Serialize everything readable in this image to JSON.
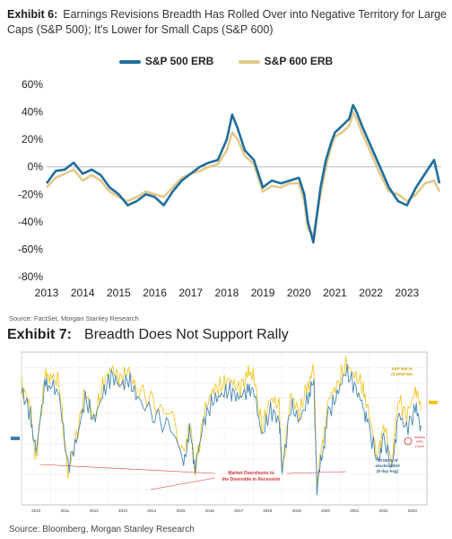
{
  "exhibit6": {
    "label": "Exhibit 6:",
    "title": "Earnings Revisions Breadth Has Rolled Over into Negative Territory for Large Caps (S&P 500); It's Lower for Small Caps (S&P 600)",
    "source": "Source: FactSet, Morgan Stanley Research"
  },
  "exhibit7": {
    "label": "Exhibit 7:",
    "title": "Breadth Does Not Support Rally",
    "source": "Source: Bloomberg, Morgan Stanley Research",
    "annotation_main": [
      "Market Overshoots to",
      "the Downside in Recession"
    ],
    "annotation_sp": [
      "S&P 500 %",
      "of 200d MA"
    ],
    "annotation_nyse": [
      "NYSE % of",
      "stocks>200d",
      "(5 day Avg)"
    ],
    "annotation_implies": [
      "Implies",
      "EPS",
      "Down"
    ],
    "years": [
      "2010",
      "2011",
      "2012",
      "2013",
      "2014",
      "2015",
      "2016",
      "2017",
      "2018",
      "2019",
      "2020",
      "2021",
      "2022",
      "2023"
    ]
  },
  "colors": {
    "sp500": "#1f6e9c",
    "sp600": "#e3c98a",
    "nyse": "#3d7fb0",
    "sp200": "#f0c419",
    "annotation": "#d63030"
  },
  "chart_data": [
    {
      "type": "line",
      "title": "Earnings Revisions Breadth Has Rolled Over into Negative Territory for Large Caps (S&P 500); It's Lower for Small Caps (S&P 600)",
      "xlabel": "",
      "ylabel": "",
      "xlim": [
        2013.0,
        2023.95
      ],
      "ylim": [
        -80,
        60
      ],
      "x_ticks": [
        "2013",
        "2014",
        "2015",
        "2016",
        "2017",
        "2018",
        "2019",
        "2020",
        "2021",
        "2022",
        "2023"
      ],
      "y_ticks": [
        "60%",
        "40%",
        "20%",
        "0%",
        "-20%",
        "-40%",
        "-60%",
        "-80%"
      ],
      "y_tick_values": [
        60,
        40,
        20,
        0,
        -20,
        -40,
        -60,
        -80
      ],
      "legend": "top",
      "grid": false,
      "series": [
        {
          "name": "S&P 500 ERB",
          "x": [
            2013.0,
            2013.25,
            2013.5,
            2013.75,
            2014.0,
            2014.25,
            2014.5,
            2014.75,
            2015.0,
            2015.25,
            2015.5,
            2015.75,
            2016.0,
            2016.25,
            2016.5,
            2016.75,
            2017.0,
            2017.25,
            2017.5,
            2017.75,
            2018.0,
            2018.15,
            2018.3,
            2018.5,
            2018.75,
            2019.0,
            2019.25,
            2019.5,
            2019.75,
            2020.0,
            2020.15,
            2020.25,
            2020.4,
            2020.6,
            2020.75,
            2020.9,
            2021.0,
            2021.2,
            2021.4,
            2021.5,
            2021.6,
            2021.75,
            2022.0,
            2022.25,
            2022.5,
            2022.75,
            2023.0,
            2023.25,
            2023.5,
            2023.75,
            2023.9
          ],
          "values": [
            -12,
            -3,
            -2,
            3,
            -5,
            -2,
            -6,
            -15,
            -20,
            -28,
            -25,
            -20,
            -22,
            -28,
            -18,
            -10,
            -5,
            0,
            3,
            5,
            20,
            38,
            28,
            12,
            5,
            -15,
            -10,
            -12,
            -10,
            -8,
            -20,
            -40,
            -55,
            -15,
            5,
            18,
            25,
            30,
            35,
            45,
            40,
            30,
            15,
            0,
            -15,
            -25,
            -28,
            -15,
            -5,
            5,
            -12
          ]
        },
        {
          "name": "S&P 600 ERB",
          "x": [
            2013.0,
            2013.25,
            2013.5,
            2013.75,
            2014.0,
            2014.25,
            2014.5,
            2014.75,
            2015.0,
            2015.25,
            2015.5,
            2015.75,
            2016.0,
            2016.25,
            2016.5,
            2016.75,
            2017.0,
            2017.25,
            2017.5,
            2017.75,
            2018.0,
            2018.15,
            2018.3,
            2018.5,
            2018.75,
            2019.0,
            2019.25,
            2019.5,
            2019.75,
            2020.0,
            2020.15,
            2020.25,
            2020.4,
            2020.6,
            2020.75,
            2020.9,
            2021.0,
            2021.2,
            2021.4,
            2021.5,
            2021.6,
            2021.75,
            2022.0,
            2022.25,
            2022.5,
            2022.75,
            2023.0,
            2023.25,
            2023.5,
            2023.75,
            2023.9
          ],
          "values": [
            -15,
            -8,
            -5,
            -2,
            -10,
            -6,
            -10,
            -18,
            -22,
            -25,
            -22,
            -18,
            -20,
            -22,
            -15,
            -8,
            -5,
            -3,
            0,
            2,
            12,
            25,
            20,
            8,
            2,
            -18,
            -14,
            -15,
            -12,
            -12,
            -25,
            -45,
            -50,
            -20,
            0,
            15,
            22,
            25,
            30,
            40,
            35,
            25,
            10,
            -5,
            -18,
            -20,
            -25,
            -20,
            -12,
            -10,
            -18
          ]
        }
      ]
    },
    {
      "type": "line",
      "title": "Breadth Does Not Support Rally",
      "xlabel": "",
      "ylabel": "",
      "xlim": [
        2010.0,
        2024.0
      ],
      "ylim": [
        0,
        100
      ],
      "x_ticks": [
        "2010",
        "2011",
        "2012",
        "2013",
        "2014",
        "2015",
        "2016",
        "2017",
        "2018",
        "2019",
        "2020",
        "2021",
        "2022",
        "2023"
      ],
      "legend": "none",
      "grid": true,
      "series": [
        {
          "name": "S&P 500 % of 200d MA",
          "x": [
            2010.0,
            2010.3,
            2010.5,
            2010.8,
            2011.0,
            2011.3,
            2011.6,
            2011.9,
            2012.2,
            2012.5,
            2012.8,
            2013.1,
            2013.4,
            2013.7,
            2014.0,
            2014.4,
            2014.8,
            2015.2,
            2015.6,
            2015.8,
            2016.0,
            2016.3,
            2016.6,
            2016.9,
            2017.2,
            2017.5,
            2017.8,
            2018.0,
            2018.3,
            2018.6,
            2018.9,
            2019.0,
            2019.3,
            2019.6,
            2019.9,
            2020.1,
            2020.2,
            2020.4,
            2020.6,
            2020.9,
            2021.2,
            2021.5,
            2021.8,
            2022.0,
            2022.3,
            2022.5,
            2022.8,
            2023.0,
            2023.3,
            2023.6,
            2023.8
          ],
          "values": [
            78,
            65,
            30,
            82,
            85,
            80,
            20,
            45,
            75,
            55,
            78,
            90,
            82,
            88,
            75,
            70,
            62,
            60,
            30,
            55,
            22,
            60,
            75,
            78,
            82,
            76,
            84,
            88,
            50,
            70,
            65,
            20,
            72,
            60,
            80,
            88,
            15,
            40,
            70,
            78,
            92,
            85,
            78,
            60,
            30,
            55,
            25,
            70,
            58,
            75,
            62
          ]
        },
        {
          "name": "NYSE % of stocks>200d (5 day Avg)",
          "x": [
            2010.0,
            2010.3,
            2010.5,
            2010.8,
            2011.0,
            2011.3,
            2011.6,
            2011.9,
            2012.2,
            2012.5,
            2012.8,
            2013.1,
            2013.4,
            2013.7,
            2014.0,
            2014.4,
            2014.8,
            2015.2,
            2015.6,
            2015.8,
            2016.0,
            2016.3,
            2016.6,
            2016.9,
            2017.2,
            2017.5,
            2017.8,
            2018.0,
            2018.3,
            2018.6,
            2018.9,
            2019.0,
            2019.3,
            2019.6,
            2019.9,
            2020.1,
            2020.2,
            2020.4,
            2020.6,
            2020.9,
            2021.2,
            2021.5,
            2021.8,
            2022.0,
            2022.3,
            2022.5,
            2022.8,
            2023.0,
            2023.3,
            2023.6,
            2023.8
          ],
          "values": [
            75,
            60,
            35,
            78,
            80,
            72,
            25,
            42,
            70,
            55,
            72,
            85,
            78,
            82,
            70,
            62,
            55,
            50,
            28,
            48,
            25,
            55,
            68,
            72,
            75,
            70,
            75,
            78,
            45,
            62,
            55,
            22,
            65,
            55,
            70,
            80,
            10,
            35,
            60,
            72,
            88,
            78,
            65,
            50,
            28,
            45,
            22,
            60,
            50,
            62,
            52
          ]
        }
      ]
    }
  ]
}
